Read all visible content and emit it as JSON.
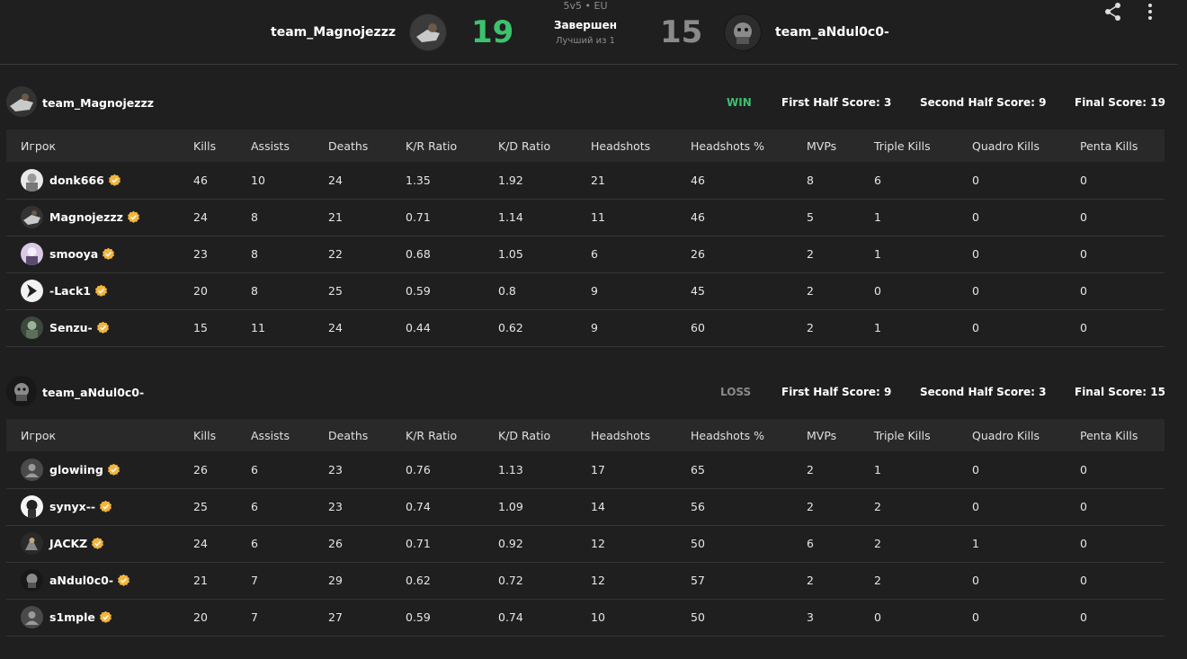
{
  "header": {
    "team1_name": "team_Magnojezzz",
    "team2_name": "team_aNdul0c0-",
    "team1_score": "19",
    "team2_score": "15",
    "mode": "5v5 • EU",
    "status": "Завершен",
    "format": "Лучший из 1",
    "icons": [
      "share-icon",
      "more-vertical-icon"
    ]
  },
  "colors": {
    "win": "#3cc26e",
    "loss": "#8a8a8a",
    "background": "#1f1f1f",
    "header_row": "#292929",
    "verified": "#f3b53b"
  },
  "columns": [
    "Игрок",
    "Kills",
    "Assists",
    "Deaths",
    "K/R Ratio",
    "K/D Ratio",
    "Headshots",
    "Headshots %",
    "MVPs",
    "Triple Kills",
    "Quadro Kills",
    "Penta Kills"
  ],
  "teams": [
    {
      "name": "team_Magnojezzz",
      "result": "WIN",
      "first_half": "First Half Score: 3",
      "second_half": "Second Half Score: 9",
      "final": "Final Score: 19",
      "players": [
        {
          "name": "donk666",
          "stats": [
            "46",
            "10",
            "24",
            "1.35",
            "1.92",
            "21",
            "46",
            "8",
            "6",
            "0",
            "0"
          ]
        },
        {
          "name": "Magnojezzz",
          "stats": [
            "24",
            "8",
            "21",
            "0.71",
            "1.14",
            "11",
            "46",
            "5",
            "1",
            "0",
            "0"
          ]
        },
        {
          "name": "smooya",
          "stats": [
            "23",
            "8",
            "22",
            "0.68",
            "1.05",
            "6",
            "26",
            "2",
            "1",
            "0",
            "0"
          ]
        },
        {
          "name": "-Lack1",
          "stats": [
            "20",
            "8",
            "25",
            "0.59",
            "0.8",
            "9",
            "45",
            "2",
            "0",
            "0",
            "0"
          ]
        },
        {
          "name": "Senzu-",
          "stats": [
            "15",
            "11",
            "24",
            "0.44",
            "0.62",
            "9",
            "60",
            "2",
            "1",
            "0",
            "0"
          ]
        }
      ]
    },
    {
      "name": "team_aNdul0c0-",
      "result": "LOSS",
      "first_half": "First Half Score: 9",
      "second_half": "Second Half Score: 3",
      "final": "Final Score: 15",
      "players": [
        {
          "name": "glowiing",
          "stats": [
            "26",
            "6",
            "23",
            "0.76",
            "1.13",
            "17",
            "65",
            "2",
            "1",
            "0",
            "0"
          ]
        },
        {
          "name": "synyx--",
          "stats": [
            "25",
            "6",
            "23",
            "0.74",
            "1.09",
            "14",
            "56",
            "2",
            "2",
            "0",
            "0"
          ]
        },
        {
          "name": "JACKZ",
          "stats": [
            "24",
            "6",
            "26",
            "0.71",
            "0.92",
            "12",
            "50",
            "6",
            "2",
            "1",
            "0"
          ]
        },
        {
          "name": "aNdul0c0-",
          "stats": [
            "21",
            "7",
            "29",
            "0.62",
            "0.72",
            "12",
            "57",
            "2",
            "2",
            "0",
            "0"
          ]
        },
        {
          "name": "s1mple",
          "stats": [
            "20",
            "7",
            "27",
            "0.59",
            "0.74",
            "10",
            "50",
            "3",
            "0",
            "0",
            "0"
          ]
        }
      ]
    }
  ]
}
